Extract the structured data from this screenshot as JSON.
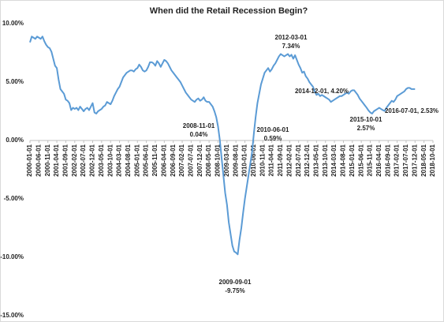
{
  "chart_data": {
    "type": "line",
    "title": "When did the Retail Recession Begin?",
    "categories": [
      "2000-01-01",
      null,
      null,
      null,
      null,
      "2000-06-01",
      null,
      null,
      null,
      null,
      "2000-11-01",
      null,
      null,
      null,
      null,
      "2001-04-01",
      null,
      null,
      null,
      null,
      "2001-09-01",
      null,
      null,
      null,
      null,
      "2002-02-01",
      null,
      null,
      null,
      null,
      "2002-07-01",
      null,
      null,
      null,
      null,
      "2002-12-01",
      null,
      null,
      null,
      null,
      "2003-05-01",
      null,
      null,
      null,
      null,
      "2003-10-01",
      null,
      null,
      null,
      null,
      "2004-03-01",
      null,
      null,
      null,
      null,
      "2004-08-01",
      null,
      null,
      null,
      null,
      "2005-01-01",
      null,
      null,
      null,
      null,
      "2005-06-01",
      null,
      null,
      null,
      null,
      "2005-11-01",
      null,
      null,
      null,
      null,
      "2006-04-01",
      null,
      null,
      null,
      null,
      "2006-09-01",
      null,
      null,
      null,
      null,
      "2007-02-01",
      null,
      null,
      null,
      null,
      "2007-07-01",
      null,
      null,
      null,
      null,
      "2007-12-01",
      null,
      null,
      null,
      null,
      "2008-05-01",
      null,
      null,
      null,
      null,
      "2008-10-01",
      null,
      null,
      null,
      null,
      "2009-03-01",
      null,
      null,
      null,
      null,
      "2009-08-01",
      null,
      null,
      null,
      null,
      "2010-01-01",
      null,
      null,
      null,
      null,
      "2010-06-01",
      null,
      null,
      null,
      null,
      "2010-11-01",
      null,
      null,
      null,
      null,
      "2011-04-01",
      null,
      null,
      null,
      null,
      "2011-09-01",
      null,
      null,
      null,
      null,
      "2012-02-01",
      null,
      null,
      null,
      null,
      "2012-07-01",
      null,
      null,
      null,
      null,
      "2012-12-01",
      null,
      null,
      null,
      null,
      "2013-05-01",
      null,
      null,
      null,
      null,
      "2013-10-01",
      null,
      null,
      null,
      null,
      "2014-03-01",
      null,
      null,
      null,
      null,
      "2014-08-01",
      null,
      null,
      null,
      null,
      "2015-01-01",
      null,
      null,
      null,
      null,
      "2015-06-01",
      null,
      null,
      null,
      null,
      "2015-11-01",
      null,
      null,
      null,
      null,
      "2016-04-01",
      null,
      null,
      null,
      null,
      "2016-09-01",
      null,
      null,
      null,
      null,
      "2017-02-01",
      null,
      null,
      null,
      null,
      "2017-07-01",
      null,
      null,
      null,
      null,
      "2017-12-01",
      null,
      null,
      null,
      null,
      "2018-05-01",
      null,
      null,
      null,
      null,
      "2018-10-01"
    ],
    "series": [
      {
        "color": "#5b9bd5",
        "values": [
          8.4,
          8.9,
          8.8,
          8.7,
          8.9,
          8.8,
          8.7,
          8.9,
          8.5,
          8.2,
          8.0,
          7.9,
          7.6,
          7.0,
          6.4,
          6.2,
          5.2,
          4.4,
          4.2,
          4.0,
          3.5,
          3.4,
          3.2,
          2.6,
          2.8,
          2.7,
          2.8,
          2.6,
          2.9,
          2.7,
          2.5,
          2.7,
          2.8,
          2.6,
          2.9,
          3.2,
          2.4,
          2.3,
          2.5,
          2.6,
          2.7,
          2.9,
          3.0,
          3.3,
          3.2,
          3.1,
          3.4,
          3.8,
          4.1,
          4.4,
          4.6,
          5.0,
          5.4,
          5.6,
          5.8,
          5.9,
          6.0,
          6.0,
          5.9,
          6.1,
          6.2,
          6.5,
          6.3,
          6.0,
          5.9,
          6.0,
          6.3,
          6.7,
          6.7,
          6.6,
          6.4,
          6.8,
          6.6,
          6.3,
          6.6,
          6.9,
          6.8,
          6.6,
          6.3,
          6.0,
          5.8,
          5.6,
          5.4,
          5.2,
          5.0,
          4.7,
          4.4,
          4.1,
          3.9,
          3.7,
          3.5,
          3.4,
          3.3,
          3.5,
          3.6,
          3.4,
          3.5,
          3.7,
          3.4,
          3.3,
          3.3,
          3.1,
          2.9,
          2.5,
          2.0,
          1.2,
          0.04,
          -1.5,
          -3.0,
          -4.5,
          -5.5,
          -7.0,
          -8.0,
          -9.0,
          -9.5,
          -9.6,
          -9.75,
          -8.5,
          -7.5,
          -6.2,
          -5.0,
          -4.0,
          -3.0,
          -2.0,
          -1.0,
          0.59,
          2.0,
          3.2,
          4.0,
          4.8,
          5.3,
          5.8,
          6.0,
          6.2,
          5.9,
          6.1,
          6.4,
          6.6,
          6.9,
          7.2,
          7.4,
          7.3,
          7.2,
          7.3,
          7.4,
          7.2,
          7.34,
          7.0,
          7.3,
          6.9,
          6.5,
          6.2,
          5.8,
          5.9,
          5.5,
          5.3,
          5.0,
          4.8,
          4.6,
          4.2,
          3.9,
          4.0,
          3.8,
          3.9,
          3.8,
          3.7,
          3.6,
          3.5,
          3.3,
          3.4,
          3.5,
          3.6,
          3.7,
          3.8,
          3.8,
          3.9,
          4.0,
          4.1,
          4.0,
          4.2,
          4.3,
          4.3,
          4.1,
          3.9,
          3.6,
          3.4,
          3.2,
          3.0,
          2.8,
          2.57,
          2.4,
          2.3,
          2.5,
          2.6,
          2.7,
          2.8,
          2.7,
          2.6,
          2.53,
          2.8,
          3.0,
          3.2,
          3.4,
          3.3,
          3.5,
          3.8,
          3.9,
          4.0,
          4.1,
          4.2,
          4.4,
          4.5,
          4.5,
          4.4,
          4.4,
          4.4,
          null,
          null,
          null,
          null,
          null,
          null,
          null,
          null,
          null,
          null
        ]
      }
    ],
    "ylim": [
      -15,
      10
    ],
    "yticks": [
      {
        "value": -15,
        "label": "-15.00%"
      },
      {
        "value": -10,
        "label": "-10.00%"
      },
      {
        "value": -5,
        "label": "-5.00%"
      },
      {
        "value": 0,
        "label": "0.00%"
      },
      {
        "value": 5,
        "label": "5.00%"
      },
      {
        "value": 10,
        "label": "10.00%"
      }
    ],
    "annotations": [
      {
        "lines": [
          "2012-03-01",
          "7.34%"
        ]
      },
      {
        "lines": [
          "2008-11-01",
          "0.04%"
        ]
      },
      {
        "lines": [
          "2010-06-01",
          "0.59%"
        ]
      },
      {
        "lines": [
          "2009-09-01",
          "-9.75%"
        ]
      },
      {
        "lines": [
          "2014-12-01, 4.20%"
        ]
      },
      {
        "lines": [
          "2015-10-01",
          "2.57%"
        ]
      },
      {
        "lines": [
          "2016-07-01, 2.53%"
        ]
      }
    ]
  }
}
